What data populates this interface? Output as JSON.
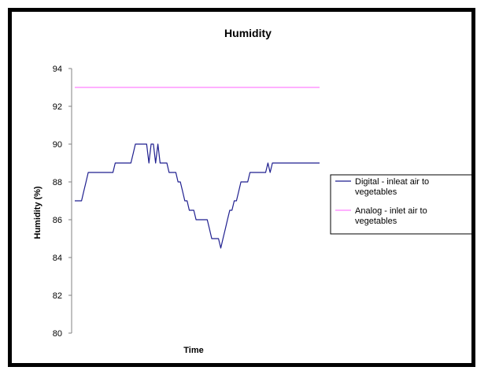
{
  "chart_data": {
    "type": "line",
    "title": "Humidity",
    "xlabel": "Time",
    "ylabel": "Humidity (%)",
    "ylim": [
      80,
      94
    ],
    "yticks": [
      80,
      82,
      84,
      86,
      88,
      90,
      92,
      94
    ],
    "grid": false,
    "legend_position": "right",
    "series": [
      {
        "name": "Digital - inleat air to vegetables",
        "color": "#1f1f8f",
        "values": [
          87,
          87,
          87,
          87,
          87.5,
          88,
          88.5,
          88.5,
          88.5,
          88.5,
          88.5,
          88.5,
          88.5,
          88.5,
          88.5,
          88.5,
          88.5,
          88.5,
          89,
          89,
          89,
          89,
          89,
          89,
          89,
          89,
          89.5,
          90,
          90,
          90,
          90,
          90,
          90,
          89,
          90,
          90,
          89,
          90,
          89,
          89,
          89,
          89,
          88.5,
          88.5,
          88.5,
          88.5,
          88,
          88,
          87.5,
          87,
          87,
          86.5,
          86.5,
          86.5,
          86,
          86,
          86,
          86,
          86,
          86,
          85.5,
          85,
          85,
          85,
          85,
          84.5,
          85,
          85.5,
          86,
          86.5,
          86.5,
          87,
          87,
          87.5,
          88,
          88,
          88,
          88,
          88.5,
          88.5,
          88.5,
          88.5,
          88.5,
          88.5,
          88.5,
          88.5,
          89,
          88.5,
          89,
          89,
          89,
          89,
          89,
          89,
          89,
          89,
          89,
          89,
          89,
          89,
          89,
          89,
          89,
          89,
          89,
          89,
          89,
          89,
          89,
          89
        ]
      },
      {
        "name": "Analog - inlet air to vegetables",
        "color": "#ff80ff",
        "values": [
          93,
          93
        ]
      }
    ]
  }
}
